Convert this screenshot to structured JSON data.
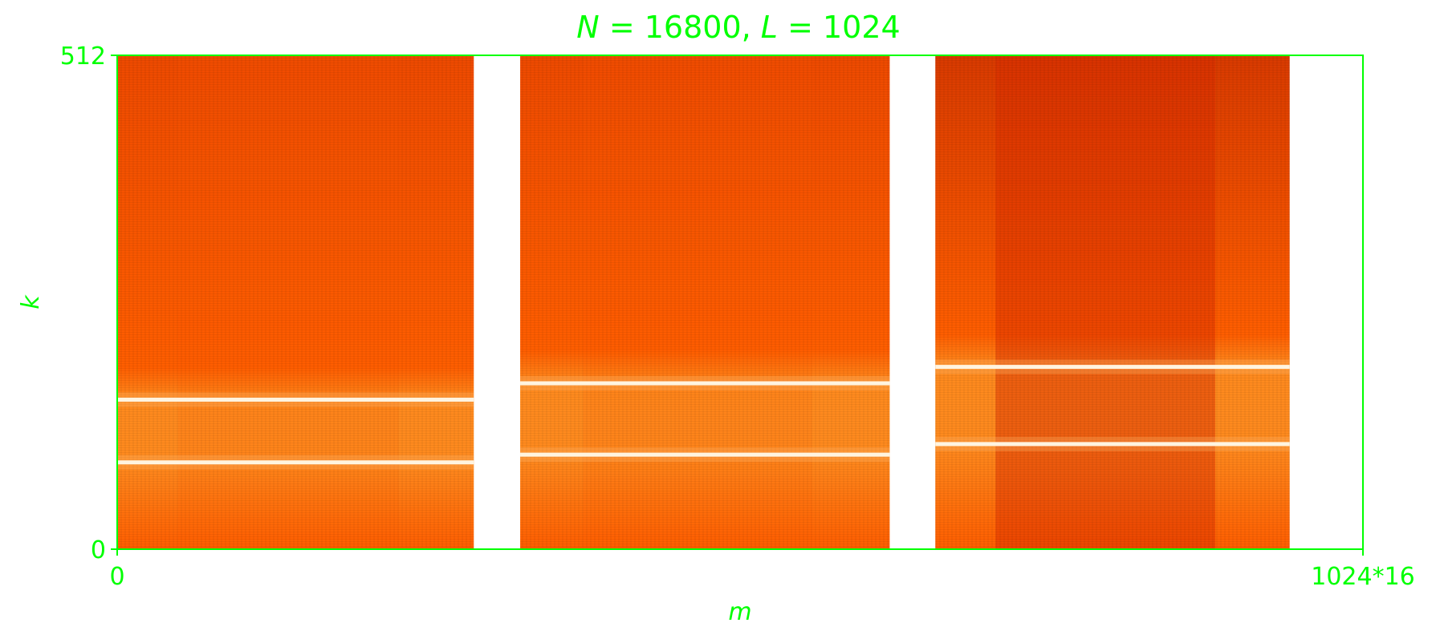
{
  "chart_data": {
    "type": "heatmap",
    "title": "N = 16800, L = 1024",
    "title_parts": {
      "n_symbol": "N",
      "n_value": "= 16800,",
      "l_symbol": "L",
      "l_value": "= 1024"
    },
    "xlabel": "m",
    "ylabel": "k",
    "xlim": [
      0,
      16384
    ],
    "ylim": [
      0,
      512
    ],
    "x_ticks": [
      {
        "value": 0,
        "label": "0"
      },
      {
        "value": 16384,
        "label": "1024*16"
      }
    ],
    "y_ticks": [
      {
        "value": 0,
        "label": "0"
      },
      {
        "value": 512,
        "label": "512"
      }
    ],
    "grid": false,
    "blocks": [
      {
        "name": "block 1",
        "x_start": 0,
        "x_end": 4690,
        "lines_k": [
          90,
          155
        ]
      },
      {
        "name": "block 2",
        "x_start": 5300,
        "x_end": 10160,
        "lines_k": [
          98,
          172
        ]
      },
      {
        "name": "block 3",
        "x_start": 10760,
        "x_end": 15420,
        "lines_k": [
          109,
          189
        ]
      }
    ],
    "colors": {
      "axes": "#00ff00",
      "base": "#ff5e00",
      "dark": "#d72a00",
      "mid": "#ff8a1e",
      "bright": "#fff4e0"
    }
  }
}
